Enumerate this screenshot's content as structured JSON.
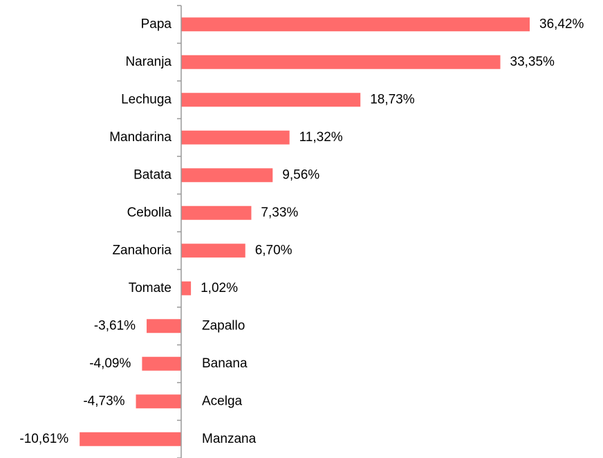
{
  "chart_data": {
    "type": "bar",
    "orientation": "horizontal",
    "categories": [
      "Papa",
      "Naranja",
      "Lechuga",
      "Mandarina",
      "Batata",
      "Cebolla",
      "Zanahoria",
      "Tomate",
      "Zapallo",
      "Banana",
      "Acelga",
      "Manzana"
    ],
    "values": [
      36.42,
      33.35,
      18.73,
      11.32,
      9.56,
      7.33,
      6.7,
      1.02,
      -3.61,
      -4.09,
      -4.73,
      -10.61
    ],
    "value_labels": [
      "36,42%",
      "33,35%",
      "18,73%",
      "11,32%",
      "9,56%",
      "7,33%",
      "6,70%",
      "1,02%",
      "-3,61%",
      "-4,09%",
      "-4,73%",
      "-10,61%"
    ],
    "color": "#ff6b6b"
  }
}
